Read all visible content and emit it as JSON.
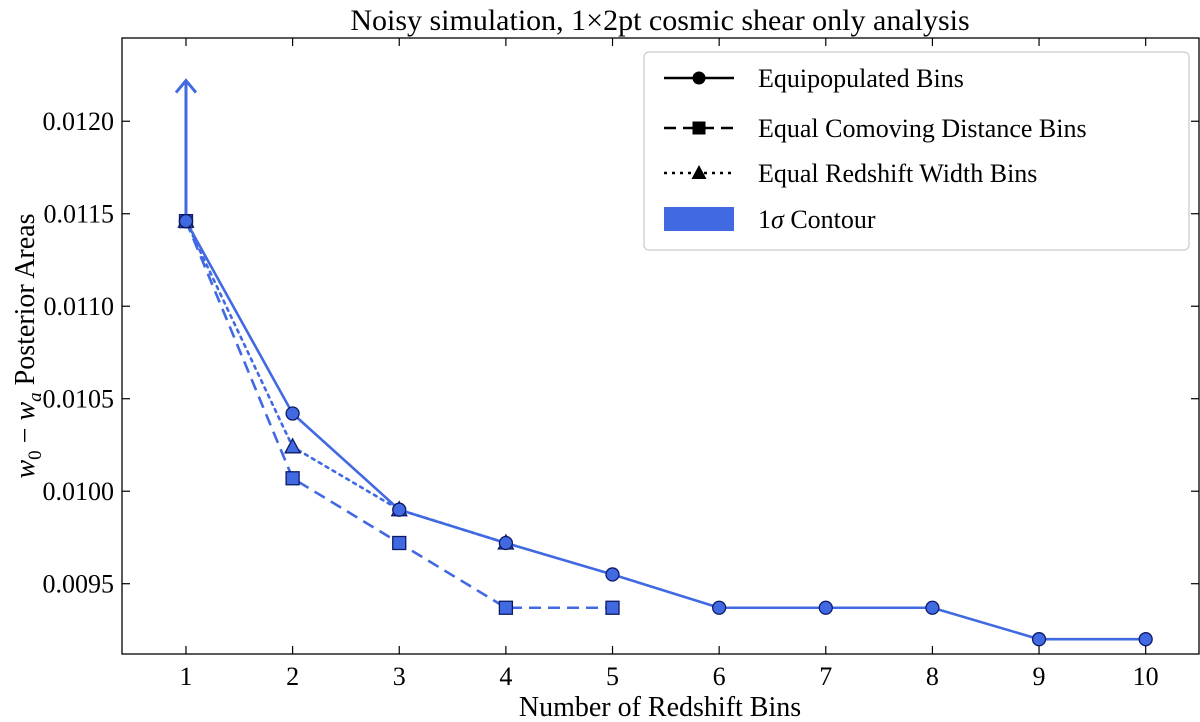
{
  "chart_data": {
    "type": "line",
    "title": "Noisy simulation, 1×2pt cosmic shear only analysis",
    "xlabel": "Number of Redshift Bins",
    "ylabel_main": "w",
    "ylabel_sub0": "0",
    "ylabel_minus": " − ",
    "ylabel_sub_a": "a",
    "ylabel_rest": " Posterior Areas",
    "xlim": [
      0.4,
      10.5
    ],
    "ylim": [
      0.00912,
      0.01245
    ],
    "xticks": [
      1,
      2,
      3,
      4,
      5,
      6,
      7,
      8,
      9,
      10
    ],
    "xtick_labels": [
      "1",
      "2",
      "3",
      "4",
      "5",
      "6",
      "7",
      "8",
      "9",
      "10"
    ],
    "yticks": [
      0.0095,
      0.01,
      0.0105,
      0.011,
      0.0115,
      0.012
    ],
    "ytick_labels": [
      "0.0095",
      "0.0100",
      "0.0105",
      "0.0110",
      "0.0115",
      "0.0120"
    ],
    "grid": false,
    "legend_position": "top-right",
    "color": "#4169e1",
    "marker_edge": "#0d1a66",
    "series": [
      {
        "name": "Equipopulated Bins",
        "linestyle": "solid",
        "marker": "circle",
        "x": [
          1,
          2,
          3,
          4,
          5,
          6,
          7,
          8,
          9,
          10
        ],
        "y": [
          0.01146,
          0.01042,
          0.0099,
          0.00972,
          0.00955,
          0.00937,
          0.00937,
          0.00937,
          0.0092,
          0.0092
        ]
      },
      {
        "name": "Equal Comoving Distance Bins",
        "linestyle": "dashed",
        "marker": "square",
        "x": [
          1,
          2,
          3,
          4,
          5
        ],
        "y": [
          0.01146,
          0.01007,
          0.00972,
          0.00937,
          0.00937
        ]
      },
      {
        "name": "Equal Redshift Width Bins",
        "linestyle": "dotted",
        "marker": "triangle",
        "x": [
          1,
          2,
          3,
          4
        ],
        "y": [
          0.01146,
          0.01024,
          0.0099,
          0.00972
        ]
      }
    ],
    "contour_legend_label": "1σ Contour",
    "contour_legend_prefix": "1",
    "contour_legend_sigma": "σ",
    "contour_legend_rest": " Contour",
    "upper_limit_arrow": {
      "x": 1,
      "y_from": 0.01146,
      "y_to": 0.01222
    }
  }
}
